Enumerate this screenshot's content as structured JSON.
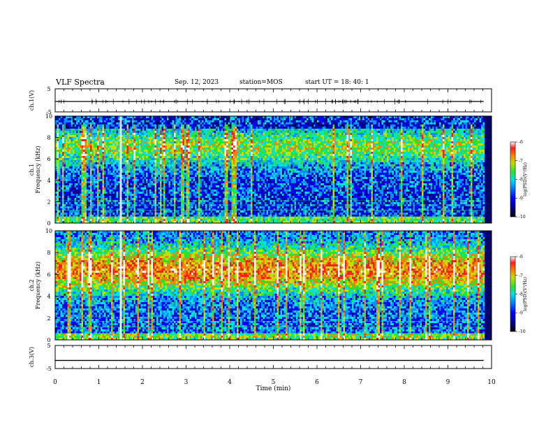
{
  "header": {
    "title": "VLF Spectra",
    "date": "Sep. 12, 2023",
    "station": "station=MOS",
    "start": "start  UT =   18: 40: 1"
  },
  "chart_data": [
    {
      "type": "line",
      "ylabel": "ch.1(V)",
      "ylim": [
        -5,
        5
      ],
      "y_ticks": [
        "5",
        "-5"
      ],
      "x": [
        0,
        9.82
      ],
      "values": [
        -0.5,
        -0.5
      ]
    },
    {
      "type": "heatmap",
      "ylabel": "ch.1\nFrequency (kHz)",
      "ylim": [
        0,
        10
      ],
      "y_ticks": [
        "0",
        "2",
        "4",
        "6",
        "8",
        "10"
      ],
      "colorbar": {
        "label": "log(PSD)(V²/Hz)",
        "range": [
          -10,
          -6
        ],
        "ticks": [
          "-6",
          "-7",
          "-8",
          "-9",
          "-10"
        ]
      }
    },
    {
      "type": "heatmap",
      "ylabel": "ch.2\nFrequency (kHz)",
      "ylim": [
        0,
        10
      ],
      "y_ticks": [
        "0",
        "2",
        "4",
        "6",
        "8",
        "10"
      ],
      "colorbar": {
        "label": "log(PSD)(V²/Hz)",
        "range": [
          -10,
          -6
        ],
        "ticks": [
          "-6",
          "-7",
          "-8",
          "-9",
          "-10"
        ]
      }
    },
    {
      "type": "line",
      "ylabel": "ch.3(V)",
      "ylim": [
        -5,
        5
      ],
      "y_ticks": [
        "5",
        "-5"
      ],
      "x": [
        0,
        9.82
      ],
      "values": [
        -1.5,
        -1.5
      ]
    }
  ],
  "x_axis": {
    "label": "Time  (min)",
    "range": [
      0,
      10
    ],
    "ticks": [
      "0",
      "1",
      "2",
      "3",
      "4",
      "5",
      "6",
      "7",
      "8",
      "9",
      "10"
    ]
  },
  "colors": {
    "background": "#ffffff",
    "axis": "#000000",
    "colormap": [
      "#000000",
      "#00008c",
      "#0000ff",
      "#0090ff",
      "#00e0e0",
      "#30e030",
      "#c0e000",
      "#ff8000",
      "#ff2020",
      "#ffffff"
    ]
  }
}
